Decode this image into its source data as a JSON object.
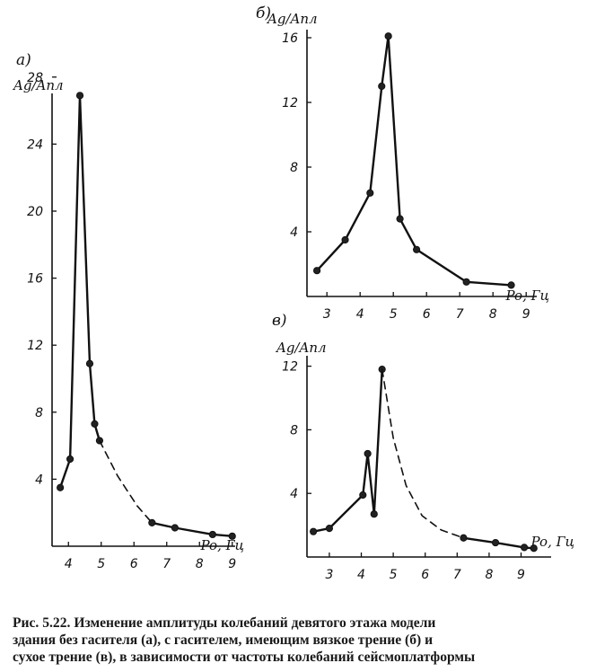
{
  "caption": {
    "line1": "Рис. 5.22. Изменение амплитуды колебаний девятого этажа модели",
    "line2": "здания без гасителя (а), с гасителем, имеющим вязкое трение (б) и",
    "line3": "сухое трение (в), в зависимости от частоты колебаний сейсмоплатформы"
  },
  "chart_data": [
    {
      "type": "line",
      "panel_label": "а)",
      "ylabel": "Ag/Aпл",
      "xlabel": "Po, Гц",
      "xticks": [
        4,
        5,
        6,
        7,
        8,
        9
      ],
      "yticks": [
        4,
        8,
        12,
        16,
        20,
        24,
        28
      ],
      "xlim": [
        3.5,
        9.2
      ],
      "ylim": [
        0,
        28
      ],
      "series": [
        {
          "style": "solid",
          "x": [
            3.75,
            4.05,
            4.35,
            4.65,
            4.8,
            4.95
          ],
          "y": [
            3.5,
            5.2,
            26.9,
            10.9,
            7.3,
            6.3
          ]
        },
        {
          "style": "dashed",
          "x": [
            4.95,
            5.5,
            6.1,
            6.55
          ],
          "y": [
            6.3,
            4.2,
            2.4,
            1.4
          ]
        },
        {
          "style": "solid",
          "x": [
            6.55,
            7.25,
            8.4,
            9.0
          ],
          "y": [
            1.4,
            1.1,
            0.7,
            0.6
          ]
        }
      ]
    },
    {
      "type": "line",
      "panel_label": "б)",
      "ylabel": "Ag/Aпл",
      "xlabel": "Po, Гц",
      "xticks": [
        3,
        4,
        5,
        6,
        7,
        8,
        9
      ],
      "yticks": [
        4,
        8,
        12,
        16
      ],
      "xlim": [
        2.4,
        9.2
      ],
      "ylim": [
        0,
        16.5
      ],
      "series": [
        {
          "style": "solid",
          "x": [
            2.7,
            3.55,
            4.3,
            4.65,
            4.85,
            5.2,
            5.7,
            7.2,
            8.55
          ],
          "y": [
            1.6,
            3.5,
            6.4,
            13.0,
            16.1,
            4.8,
            2.9,
            0.9,
            0.7
          ]
        }
      ]
    },
    {
      "type": "line",
      "panel_label": "в)",
      "ylabel": "Ag/Aпл",
      "xlabel": "Po, Гц",
      "xticks": [
        3,
        4,
        5,
        6,
        7,
        8,
        9
      ],
      "yticks": [
        4,
        8,
        12
      ],
      "xlim": [
        2.3,
        9.6
      ],
      "ylim": [
        0,
        12.5
      ],
      "series": [
        {
          "style": "solid",
          "x": [
            2.5,
            3.0,
            4.05,
            4.2,
            4.4,
            4.65
          ],
          "y": [
            1.6,
            1.8,
            3.9,
            6.5,
            2.7,
            11.8
          ]
        },
        {
          "style": "dashed",
          "x": [
            4.65,
            5.0,
            5.4,
            5.9,
            6.5,
            7.2
          ],
          "y": [
            11.8,
            7.5,
            4.5,
            2.6,
            1.7,
            1.2
          ]
        },
        {
          "style": "solid",
          "x": [
            7.2,
            8.2,
            9.1,
            9.4
          ],
          "y": [
            1.2,
            0.9,
            0.6,
            0.55
          ]
        }
      ]
    }
  ]
}
